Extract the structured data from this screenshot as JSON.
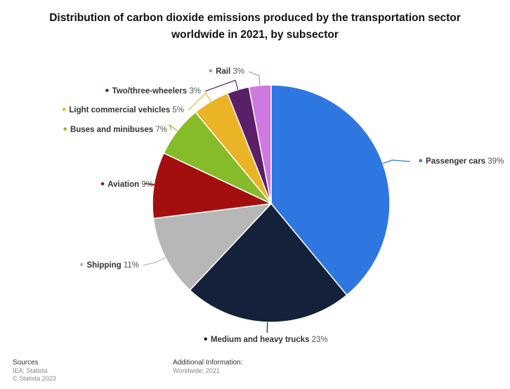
{
  "title_line1": "Distribution of carbon dioxide emissions produced by the transportation sector",
  "title_line2": "worldwide in 2021, by subsector",
  "chart_data": {
    "type": "pie",
    "title": "Distribution of carbon dioxide emissions produced by the transportation sector worldwide in 2021, by subsector",
    "unit": "%",
    "slices": [
      {
        "label": "Passenger cars",
        "value": 39,
        "color": "#2e77e0"
      },
      {
        "label": "Medium and heavy trucks",
        "value": 23,
        "color": "#13223a"
      },
      {
        "label": "Shipping",
        "value": 11,
        "color": "#b7b7b7"
      },
      {
        "label": "Aviation",
        "value": 9,
        "color": "#a30f0f"
      },
      {
        "label": "Buses and minibuses",
        "value": 7,
        "color": "#86bb2a"
      },
      {
        "label": "Light commercial vehicles",
        "value": 5,
        "color": "#eab426"
      },
      {
        "label": "Two/three-wheelers",
        "value": 3,
        "color": "#5a1f66"
      },
      {
        "label": "Rail",
        "value": 3,
        "color": "#cd79e0"
      }
    ]
  },
  "footer": {
    "sources_title": "Sources",
    "sources_line1": "IEA; Statista",
    "sources_line2": "© Statista 2023",
    "info_title": "Additional Information:",
    "info_line1": "Worldwide; 2021"
  }
}
